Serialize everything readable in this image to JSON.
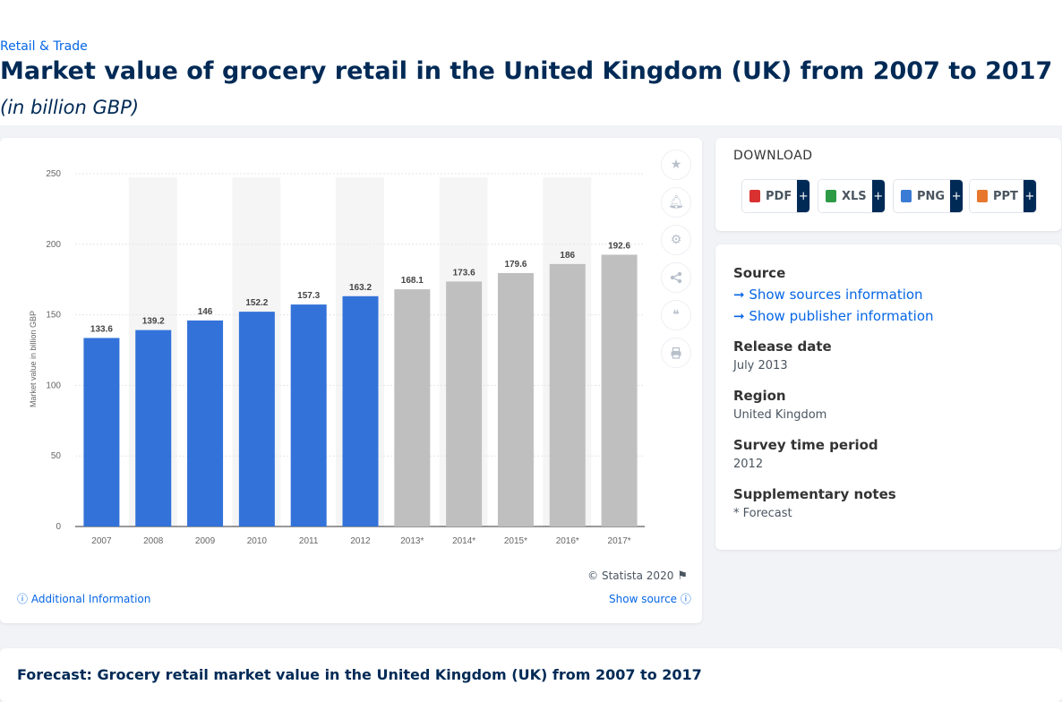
{
  "breadcrumb": "Retail & Trade",
  "title": "Market value of grocery retail in the United Kingdom (UK) from 2007 to 2017",
  "subtitle": "(in billion GBP)",
  "chart_data": {
    "type": "bar",
    "categories": [
      "2007",
      "2008",
      "2009",
      "2010",
      "2011",
      "2012",
      "2013*",
      "2014*",
      "2015*",
      "2016*",
      "2017*"
    ],
    "values": [
      133.6,
      139.2,
      146,
      152.2,
      157.3,
      163.2,
      168.1,
      173.6,
      179.6,
      186,
      192.6
    ],
    "data_labels": [
      "133.6",
      "139.2",
      "146",
      "152.2",
      "157.3",
      "163.2",
      "168.1",
      "173.6",
      "179.6",
      "186",
      "192.6"
    ],
    "forecast_flags": [
      false,
      false,
      false,
      false,
      false,
      false,
      true,
      true,
      true,
      true,
      true
    ],
    "ylabel": "Market value in billion GBP",
    "xlabel": "",
    "ylim": [
      0,
      250
    ],
    "yticks": [
      "0",
      "50",
      "100",
      "150",
      "200",
      "250"
    ],
    "grid": true,
    "colors": {
      "actual": "#3372d9",
      "forecast": "#bfbfbf",
      "band": "#f5f5f5"
    }
  },
  "chart_footer": {
    "copyright": "© Statista 2020",
    "additional_info": "Additional Information",
    "show_source": "Show source"
  },
  "toolbar": [
    "star-icon",
    "bell-icon",
    "gear-icon",
    "share-icon",
    "quote-icon",
    "print-icon"
  ],
  "download": {
    "heading": "DOWNLOAD",
    "buttons": [
      {
        "label": "PDF",
        "color": "#d93030"
      },
      {
        "label": "XLS",
        "color": "#2e9a45"
      },
      {
        "label": "PNG",
        "color": "#3a7bd5"
      },
      {
        "label": "PPT",
        "color": "#e8772e"
      }
    ],
    "plus": "+"
  },
  "info": {
    "source_label": "Source",
    "show_sources": "Show sources information",
    "show_publisher": "Show publisher information",
    "release_label": "Release date",
    "release_value": "July 2013",
    "region_label": "Region",
    "region_value": "United Kingdom",
    "survey_label": "Survey time period",
    "survey_value": "2012",
    "notes_label": "Supplementary notes",
    "notes_value": "* Forecast"
  },
  "bottom_title": "Forecast: Grocery retail market value in the United Kingdom (UK) from 2007 to 2017"
}
